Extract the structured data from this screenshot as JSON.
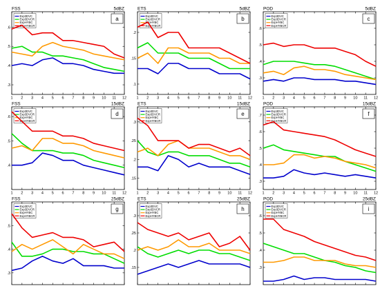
{
  "chart_data": [
    {
      "type": "line",
      "title": "FSS",
      "threshold": "5dBZ",
      "letter": "a",
      "x": [
        1,
        2,
        3,
        4,
        5,
        6,
        7,
        8,
        9,
        10,
        11,
        12
      ],
      "ylim": [
        0.25,
        0.68
      ],
      "yticks": [
        0.3,
        0.4,
        0.5,
        0.6
      ],
      "ytick_labels": [
        ".3",
        ".4",
        ".5",
        ".6"
      ],
      "series": [
        {
          "name": "Exp3DVC",
          "color": "#0000cc",
          "values": [
            0.4,
            0.41,
            0.4,
            0.43,
            0.44,
            0.41,
            0.41,
            0.4,
            0.38,
            0.37,
            0.36,
            0.36
          ]
        },
        {
          "name": "Exp3DVCR",
          "color": "#00dd00",
          "values": [
            0.49,
            0.5,
            0.47,
            0.47,
            0.45,
            0.45,
            0.44,
            0.43,
            0.41,
            0.39,
            0.38,
            0.37
          ]
        },
        {
          "name": "ExpHYBC",
          "color": "#ff9900",
          "values": [
            0.47,
            0.46,
            0.45,
            0.5,
            0.52,
            0.5,
            0.49,
            0.48,
            0.46,
            0.45,
            0.44,
            0.43
          ]
        },
        {
          "name": "ExpHYBCR",
          "color": "#ee0000",
          "values": [
            0.59,
            0.61,
            0.56,
            0.57,
            0.57,
            0.53,
            0.53,
            0.52,
            0.51,
            0.5,
            0.46,
            0.44
          ]
        }
      ]
    },
    {
      "type": "line",
      "title": "ETS",
      "threshold": "5dBZ",
      "letter": "b",
      "x": [
        1,
        2,
        3,
        4,
        5,
        6,
        7,
        8,
        9,
        10,
        11,
        12
      ],
      "ylim": [
        0.08,
        0.24
      ],
      "yticks": [
        0.1,
        0.15,
        0.2
      ],
      "ytick_labels": [
        ".1",
        ".15",
        ".2"
      ],
      "series": [
        {
          "name": "Exp3DVC",
          "color": "#0000cc",
          "values": [
            0.13,
            0.13,
            0.12,
            0.14,
            0.14,
            0.13,
            0.13,
            0.13,
            0.12,
            0.12,
            0.12,
            0.11
          ]
        },
        {
          "name": "Exp3DVCR",
          "color": "#00dd00",
          "values": [
            0.17,
            0.18,
            0.16,
            0.16,
            0.16,
            0.15,
            0.15,
            0.15,
            0.14,
            0.13,
            0.13,
            0.13
          ]
        },
        {
          "name": "ExpHYBC",
          "color": "#ff9900",
          "values": [
            0.15,
            0.16,
            0.14,
            0.17,
            0.17,
            0.16,
            0.16,
            0.16,
            0.15,
            0.15,
            0.14,
            0.14
          ]
        },
        {
          "name": "ExpHYBCR",
          "color": "#ee0000",
          "values": [
            0.21,
            0.22,
            0.19,
            0.2,
            0.2,
            0.17,
            0.17,
            0.17,
            0.17,
            0.16,
            0.15,
            0.14
          ]
        }
      ]
    },
    {
      "type": "line",
      "title": "POD",
      "threshold": "5dBZ",
      "letter": "c",
      "x": [
        1,
        2,
        3,
        4,
        5,
        6,
        7,
        8,
        9,
        10,
        11,
        12
      ],
      "ylim": [
        0.2,
        0.7
      ],
      "yticks": [
        0.3,
        0.4,
        0.5,
        0.6
      ],
      "ytick_labels": [
        ".3",
        ".4",
        ".5",
        ".6"
      ],
      "series": [
        {
          "name": "Exp3DVC",
          "color": "#0000cc",
          "values": [
            0.28,
            0.29,
            0.28,
            0.3,
            0.3,
            0.29,
            0.29,
            0.29,
            0.28,
            0.28,
            0.27,
            0.26
          ]
        },
        {
          "name": "Exp3DVCR",
          "color": "#00dd00",
          "values": [
            0.38,
            0.4,
            0.4,
            0.4,
            0.39,
            0.38,
            0.38,
            0.37,
            0.35,
            0.33,
            0.31,
            0.29
          ]
        },
        {
          "name": "ExpHYBC",
          "color": "#ff9900",
          "values": [
            0.33,
            0.34,
            0.32,
            0.36,
            0.37,
            0.35,
            0.35,
            0.34,
            0.32,
            0.31,
            0.3,
            0.29
          ]
        },
        {
          "name": "ExpHYBCR",
          "color": "#ee0000",
          "values": [
            0.5,
            0.51,
            0.49,
            0.5,
            0.5,
            0.48,
            0.48,
            0.48,
            0.46,
            0.44,
            0.4,
            0.37
          ]
        }
      ]
    },
    {
      "type": "line",
      "title": "FSS",
      "threshold": "15dBZ",
      "letter": "d",
      "x": [
        1,
        2,
        3,
        4,
        5,
        6,
        7,
        8,
        9,
        10,
        11,
        12
      ],
      "ylim": [
        0.3,
        0.64
      ],
      "yticks": [
        0.4,
        0.5,
        0.6
      ],
      "ytick_labels": [
        ".4",
        ".5",
        ".6"
      ],
      "series": [
        {
          "name": "Exp3DVC",
          "color": "#0000cc",
          "values": [
            0.4,
            0.4,
            0.41,
            0.45,
            0.44,
            0.42,
            0.42,
            0.4,
            0.39,
            0.38,
            0.37,
            0.36
          ]
        },
        {
          "name": "Exp3DVCR",
          "color": "#00dd00",
          "values": [
            0.53,
            0.49,
            0.46,
            0.46,
            0.46,
            0.45,
            0.45,
            0.44,
            0.42,
            0.41,
            0.4,
            0.39
          ]
        },
        {
          "name": "ExpHYBC",
          "color": "#ff9900",
          "values": [
            0.47,
            0.48,
            0.46,
            0.51,
            0.51,
            0.49,
            0.49,
            0.48,
            0.46,
            0.45,
            0.44,
            0.43
          ]
        },
        {
          "name": "ExpHYBCR",
          "color": "#ee0000",
          "values": [
            0.62,
            0.58,
            0.54,
            0.54,
            0.54,
            0.52,
            0.52,
            0.51,
            0.49,
            0.48,
            0.47,
            0.46
          ]
        }
      ]
    },
    {
      "type": "line",
      "title": "ETS",
      "threshold": "15dBZ",
      "letter": "e",
      "x": [
        1,
        2,
        3,
        4,
        5,
        6,
        7,
        8,
        9,
        10,
        11,
        12
      ],
      "ylim": [
        0.12,
        0.34
      ],
      "yticks": [
        0.15,
        0.2,
        0.25,
        0.3
      ],
      "ytick_labels": [
        ".15",
        ".2",
        ".25",
        ".3"
      ],
      "series": [
        {
          "name": "Exp3DVC",
          "color": "#0000cc",
          "values": [
            0.18,
            0.18,
            0.17,
            0.21,
            0.2,
            0.18,
            0.19,
            0.18,
            0.18,
            0.18,
            0.17,
            0.16
          ]
        },
        {
          "name": "Exp3DVCR",
          "color": "#00dd00",
          "values": [
            0.25,
            0.22,
            0.21,
            0.22,
            0.22,
            0.21,
            0.21,
            0.21,
            0.2,
            0.19,
            0.19,
            0.18
          ]
        },
        {
          "name": "ExpHYBC",
          "color": "#ff9900",
          "values": [
            0.22,
            0.23,
            0.21,
            0.24,
            0.25,
            0.23,
            0.23,
            0.23,
            0.22,
            0.21,
            0.21,
            0.2
          ]
        },
        {
          "name": "ExpHYBCR",
          "color": "#ee0000",
          "values": [
            0.31,
            0.29,
            0.25,
            0.25,
            0.25,
            0.23,
            0.24,
            0.24,
            0.23,
            0.22,
            0.23,
            0.21
          ]
        }
      ]
    },
    {
      "type": "line",
      "title": "POD",
      "threshold": "15dBZ",
      "letter": "f",
      "x": [
        1,
        2,
        3,
        4,
        5,
        6,
        7,
        8,
        9,
        10,
        11,
        12
      ],
      "ylim": [
        0.25,
        0.75
      ],
      "yticks": [
        0.3,
        0.4,
        0.5,
        0.6,
        0.7
      ],
      "ytick_labels": [
        ".3",
        ".4",
        ".5",
        ".6",
        ".7"
      ],
      "series": [
        {
          "name": "Exp3DVC",
          "color": "#0000cc",
          "values": [
            0.32,
            0.32,
            0.33,
            0.37,
            0.35,
            0.34,
            0.35,
            0.34,
            0.33,
            0.34,
            0.33,
            0.32
          ]
        },
        {
          "name": "Exp3DVCR",
          "color": "#00dd00",
          "values": [
            0.5,
            0.52,
            0.49,
            0.48,
            0.47,
            0.46,
            0.45,
            0.45,
            0.42,
            0.4,
            0.38,
            0.36
          ]
        },
        {
          "name": "ExpHYBC",
          "color": "#ff9900",
          "values": [
            0.4,
            0.4,
            0.41,
            0.46,
            0.46,
            0.44,
            0.45,
            0.44,
            0.42,
            0.41,
            0.4,
            0.38
          ]
        },
        {
          "name": "ExpHYBCR",
          "color": "#ee0000",
          "values": [
            0.64,
            0.66,
            0.61,
            0.6,
            0.59,
            0.58,
            0.57,
            0.55,
            0.52,
            0.49,
            0.47,
            0.45
          ]
        }
      ]
    },
    {
      "type": "line",
      "title": "FSS",
      "threshold": "25dBZ",
      "letter": "g",
      "x": [
        1,
        2,
        3,
        4,
        5,
        6,
        7,
        8,
        9,
        10,
        11,
        12
      ],
      "ylim": [
        0.25,
        0.6
      ],
      "yticks": [
        0.3,
        0.4,
        0.5
      ],
      "ytick_labels": [
        ".3",
        ".4",
        ".5"
      ],
      "series": [
        {
          "name": "Exp3DVC",
          "color": "#0000cc",
          "values": [
            0.31,
            0.32,
            0.35,
            0.37,
            0.35,
            0.34,
            0.36,
            0.33,
            0.33,
            0.33,
            0.32,
            0.32
          ]
        },
        {
          "name": "Exp3DVCR",
          "color": "#00dd00",
          "values": [
            0.43,
            0.37,
            0.37,
            0.38,
            0.4,
            0.4,
            0.39,
            0.39,
            0.38,
            0.38,
            0.36,
            0.34
          ]
        },
        {
          "name": "ExpHYBC",
          "color": "#ff9900",
          "values": [
            0.39,
            0.42,
            0.4,
            0.42,
            0.44,
            0.41,
            0.38,
            0.42,
            0.4,
            0.38,
            0.38,
            0.36
          ]
        },
        {
          "name": "ExpHYBCR",
          "color": "#ee0000",
          "values": [
            0.55,
            0.49,
            0.45,
            0.46,
            0.47,
            0.45,
            0.45,
            0.44,
            0.41,
            0.42,
            0.43,
            0.39
          ]
        }
      ]
    },
    {
      "type": "line",
      "title": "ETS",
      "threshold": "25dBZ",
      "letter": "h",
      "x": [
        1,
        2,
        3,
        4,
        5,
        6,
        7,
        8,
        9,
        10,
        11,
        12
      ],
      "ylim": [
        0.1,
        0.34
      ],
      "yticks": [
        0.15,
        0.2,
        0.25,
        0.3
      ],
      "ytick_labels": [
        ".15",
        ".2",
        ".25",
        ".3"
      ],
      "series": [
        {
          "name": "Exp3DVC",
          "color": "#0000cc",
          "values": [
            0.13,
            0.14,
            0.15,
            0.16,
            0.15,
            0.16,
            0.17,
            0.16,
            0.16,
            0.16,
            0.16,
            0.15
          ]
        },
        {
          "name": "Exp3DVCR",
          "color": "#00dd00",
          "values": [
            0.21,
            0.19,
            0.18,
            0.19,
            0.2,
            0.19,
            0.2,
            0.2,
            0.19,
            0.19,
            0.18,
            0.17
          ]
        },
        {
          "name": "ExpHYBC",
          "color": "#ff9900",
          "values": [
            0.2,
            0.21,
            0.2,
            0.21,
            0.23,
            0.21,
            0.21,
            0.22,
            0.2,
            0.2,
            0.2,
            0.19
          ]
        },
        {
          "name": "ExpHYBCR",
          "color": "#ee0000",
          "values": [
            0.28,
            0.26,
            0.25,
            0.24,
            0.25,
            0.23,
            0.24,
            0.25,
            0.21,
            0.22,
            0.24,
            0.2
          ]
        }
      ]
    },
    {
      "type": "line",
      "title": "POD",
      "threshold": "25dBZ",
      "letter": "i",
      "x": [
        1,
        2,
        3,
        4,
        5,
        6,
        7,
        8,
        9,
        10,
        11,
        12
      ],
      "ylim": [
        0.2,
        0.68
      ],
      "yticks": [
        0.3,
        0.4,
        0.5,
        0.6
      ],
      "ytick_labels": [
        ".3",
        ".4",
        ".5",
        ".6"
      ],
      "series": [
        {
          "name": "Exp3DVC",
          "color": "#0000cc",
          "values": [
            0.22,
            0.22,
            0.23,
            0.25,
            0.23,
            0.24,
            0.24,
            0.23,
            0.23,
            0.23,
            0.23,
            0.22
          ]
        },
        {
          "name": "Exp3DVCR",
          "color": "#00dd00",
          "values": [
            0.44,
            0.42,
            0.4,
            0.38,
            0.38,
            0.36,
            0.34,
            0.33,
            0.31,
            0.3,
            0.28,
            0.27
          ]
        },
        {
          "name": "ExpHYBC",
          "color": "#ff9900",
          "values": [
            0.33,
            0.33,
            0.34,
            0.36,
            0.36,
            0.34,
            0.34,
            0.34,
            0.32,
            0.31,
            0.31,
            0.3
          ]
        },
        {
          "name": "ExpHYBCR",
          "color": "#ee0000",
          "values": [
            0.58,
            0.58,
            0.52,
            0.5,
            0.48,
            0.45,
            0.43,
            0.41,
            0.39,
            0.37,
            0.36,
            0.34
          ]
        }
      ]
    }
  ]
}
